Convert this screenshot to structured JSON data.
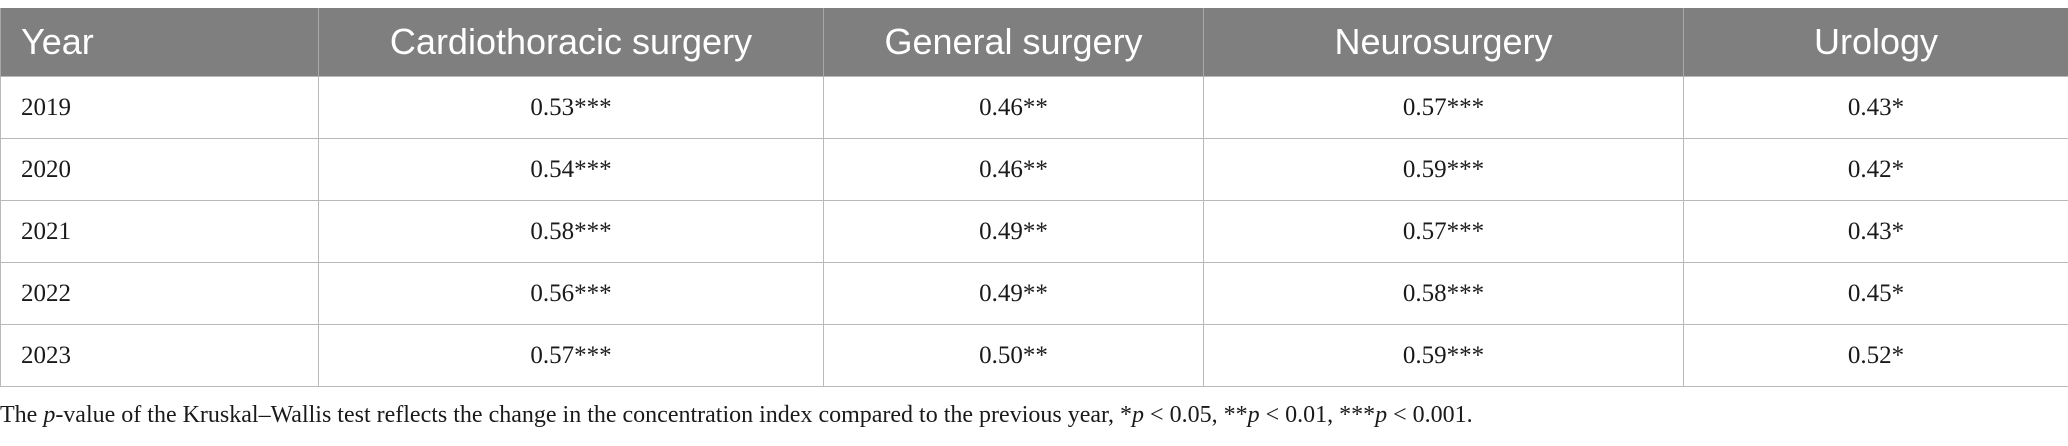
{
  "table": {
    "headers": [
      "Year",
      "Cardiothoracic surgery",
      "General surgery",
      "Neurosurgery",
      "Urology"
    ],
    "rows": [
      [
        "2019",
        "0.53***",
        "0.46**",
        "0.57***",
        "0.43*"
      ],
      [
        "2020",
        "0.54***",
        "0.46**",
        "0.59***",
        "0.42*"
      ],
      [
        "2021",
        "0.58***",
        "0.49**",
        "0.57***",
        "0.43*"
      ],
      [
        "2022",
        "0.56***",
        "0.49**",
        "0.58***",
        "0.45*"
      ],
      [
        "2023",
        "0.57***",
        "0.50**",
        "0.59***",
        "0.52*"
      ]
    ]
  },
  "footnote": {
    "prefix": "The ",
    "p_italic_1": "p",
    "text_1": "-value of the Kruskal–Wallis test reflects the change in the concentration index compared to the previous year, *",
    "p_italic_2": "p",
    "text_2": " < 0.05, **",
    "p_italic_3": "p",
    "text_3": " < 0.01, ***",
    "p_italic_4": "p",
    "text_4": " < 0.001."
  }
}
